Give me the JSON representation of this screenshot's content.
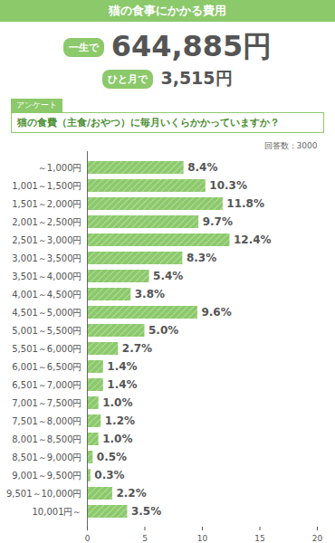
{
  "header": {
    "title": "猫の食事にかかる費用",
    "lifetime_label": "一生で",
    "lifetime_value": "644,885円",
    "monthly_label": "ひと月で",
    "monthly_value": "3,515円"
  },
  "chart_data": {
    "type": "bar",
    "orientation": "horizontal",
    "subtitle": "アンケート",
    "title": "猫の食費（主食/おやつ）に毎月いくらかかっていますか？",
    "annotations": [
      "回答数：3000"
    ],
    "categories": [
      "～1,000円",
      "1,001～1,500円",
      "1,501～2,000円",
      "2,001～2,500円",
      "2,501～3,000円",
      "3,001～3,500円",
      "3,501～4,000円",
      "4,001～4,500円",
      "4,501～5,000円",
      "5,001～5,500円",
      "5,501～6,000円",
      "6,001～6,500円",
      "6,501～7,000円",
      "7,001～7,500円",
      "7,501～8,000円",
      "8,001～8,500円",
      "8,501～9,000円",
      "9,001～9,500円",
      "9,501～10,000円",
      "10,001円～"
    ],
    "values": [
      8.4,
      10.3,
      11.8,
      9.7,
      12.4,
      8.3,
      5.4,
      3.8,
      9.6,
      5.0,
      2.7,
      1.4,
      1.4,
      1.0,
      1.2,
      1.0,
      0.5,
      0.3,
      2.2,
      3.5
    ],
    "value_labels": [
      "8.4%",
      "10.3%",
      "11.8%",
      "9.7%",
      "12.4%",
      "8.3%",
      "5.4%",
      "3.8%",
      "9.6%",
      "5.0%",
      "2.7%",
      "1.4%",
      "1.4%",
      "1.0%",
      "1.2%",
      "1.0%",
      "0.5%",
      "0.3%",
      "2.2%",
      "3.5%"
    ],
    "data_labels": true,
    "color": "#8cc96b",
    "xlim": [
      0,
      20
    ],
    "xticks": [
      0,
      5,
      10,
      15,
      20
    ],
    "grid": false
  }
}
